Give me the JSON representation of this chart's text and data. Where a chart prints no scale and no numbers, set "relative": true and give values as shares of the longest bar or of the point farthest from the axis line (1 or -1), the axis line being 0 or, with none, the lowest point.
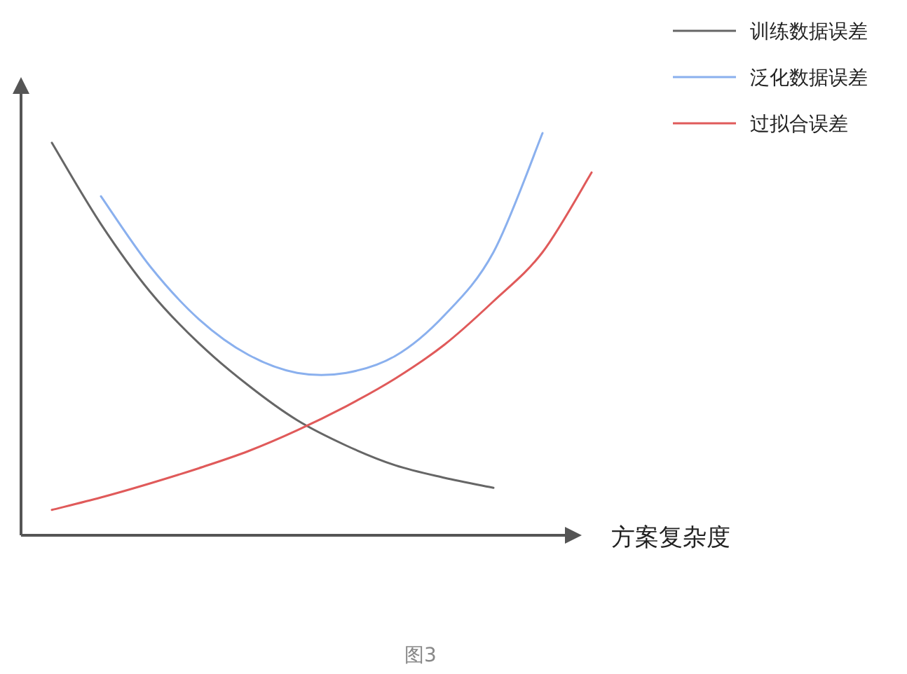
{
  "chart_data": {
    "type": "line",
    "relative": true,
    "xlabel": "方案复杂度",
    "legend": "top right",
    "annotations": [
      "图3"
    ],
    "categories": [
      null,
      null,
      null,
      null,
      null,
      null,
      null,
      null,
      null,
      null,
      null,
      null
    ],
    "series": [
      {
        "name": "训练数据误差",
        "color": "#666666",
        "values": [
          0.976,
          0.774,
          0.606,
          0.477,
          0.373,
          0.286,
          0.223,
          0.174,
          0.143,
          0.118,
          null,
          null
        ]
      },
      {
        "name": "泛化数据误差",
        "color": "#8ab0ee",
        "values": [
          null,
          0.843,
          0.669,
          0.537,
          0.449,
          0.404,
          0.404,
          0.446,
          0.547,
          0.704,
          1.0,
          null
        ]
      },
      {
        "name": "过拟合误差",
        "color": "#e05a5a",
        "values": [
          0.063,
          0.094,
          0.129,
          0.167,
          0.209,
          0.261,
          0.321,
          0.39,
          0.474,
          0.582,
          0.704,
          0.902
        ]
      }
    ]
  }
}
